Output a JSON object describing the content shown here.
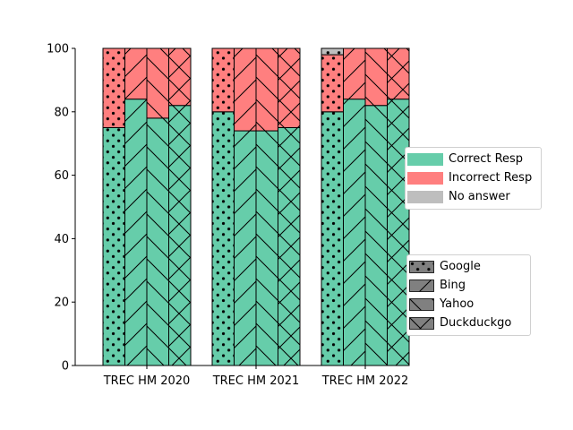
{
  "chart_data": {
    "type": "bar",
    "stacked": true,
    "groups": [
      "TREC HM 2020",
      "TREC HM 2021",
      "TREC HM 2022"
    ],
    "engines": [
      "Google",
      "Bing",
      "Yahoo",
      "Duckduckgo"
    ],
    "series": [
      {
        "name": "Correct Resp",
        "color": "#66cdaa",
        "values": [
          [
            75,
            84,
            78,
            82
          ],
          [
            80,
            74,
            74,
            75
          ],
          [
            80,
            84,
            82,
            84
          ]
        ]
      },
      {
        "name": "Incorrect Resp",
        "color": "#ff7f7f",
        "values": [
          [
            25,
            16,
            22,
            18
          ],
          [
            20,
            26,
            26,
            25
          ],
          [
            18,
            16,
            18,
            16
          ]
        ]
      },
      {
        "name": "No answer",
        "color": "#bebebe",
        "values": [
          [
            0,
            0,
            0,
            0
          ],
          [
            0,
            0,
            0,
            0
          ],
          [
            2,
            0,
            0,
            0
          ]
        ]
      }
    ],
    "ylim": [
      0,
      100
    ],
    "yticks": [
      "0",
      "20",
      "40",
      "60",
      "80",
      "100"
    ],
    "legend_category": {
      "placement": "right",
      "items": [
        "Correct Resp",
        "Incorrect Resp",
        "No answer"
      ]
    },
    "legend_engine": {
      "placement": "right",
      "items": [
        "Google",
        "Bing",
        "Yahoo",
        "Duckduckgo"
      ],
      "hatches": [
        "dots",
        "slash",
        "backslash",
        "cross"
      ],
      "color": "#808080"
    },
    "xlabel": "",
    "ylabel": "",
    "title": ""
  }
}
